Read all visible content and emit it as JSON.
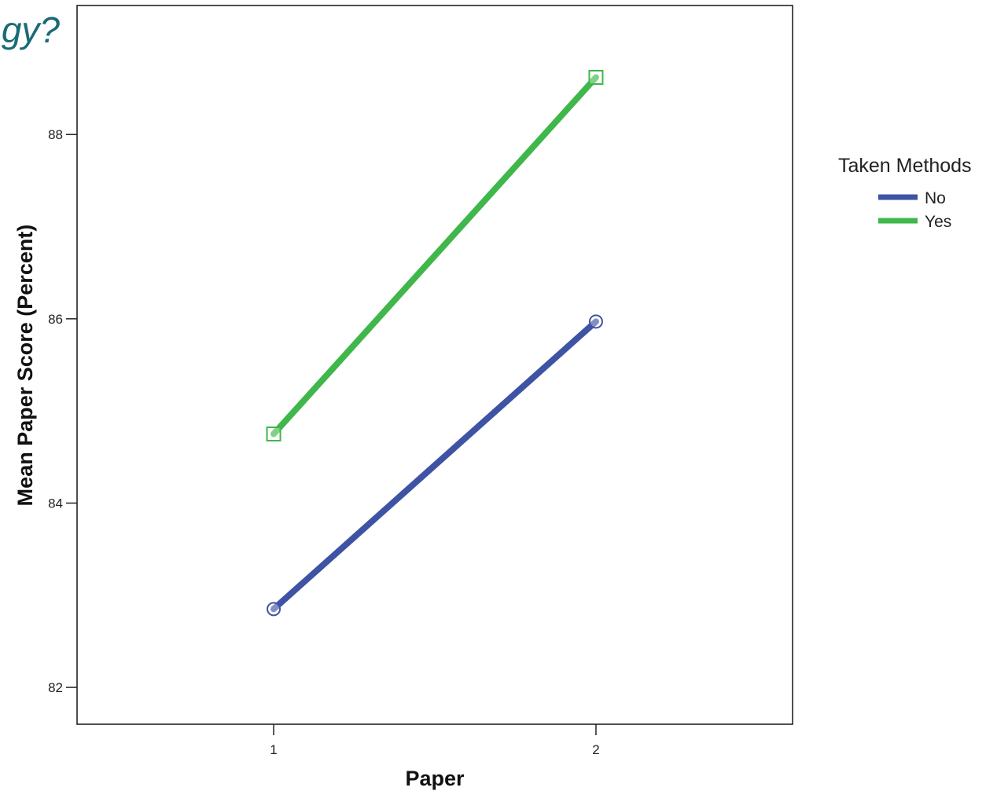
{
  "header": {
    "title_fragment": "gy?"
  },
  "chart_data": {
    "type": "line",
    "xlabel": "Paper",
    "ylabel": "Mean Paper Score (Percent)",
    "x": [
      1,
      2
    ],
    "x_tick_labels": [
      "1",
      "2"
    ],
    "y_ticks": [
      82,
      84,
      86,
      88
    ],
    "y_tick_labels": [
      "82",
      "84",
      "86",
      "88"
    ],
    "xlim": [
      0.39,
      2.61
    ],
    "ylim": [
      81.6,
      89.4
    ],
    "grid": false,
    "legend": {
      "title": "Taken Methods",
      "placement": "right",
      "labels": [
        "No",
        "Yes"
      ]
    },
    "series": [
      {
        "name": "No",
        "values": [
          82.85,
          85.97
        ],
        "color": "#3f53a4",
        "marker": "circle"
      },
      {
        "name": "Yes",
        "values": [
          84.75,
          88.62
        ],
        "color": "#3fb74a",
        "marker": "square"
      }
    ]
  }
}
